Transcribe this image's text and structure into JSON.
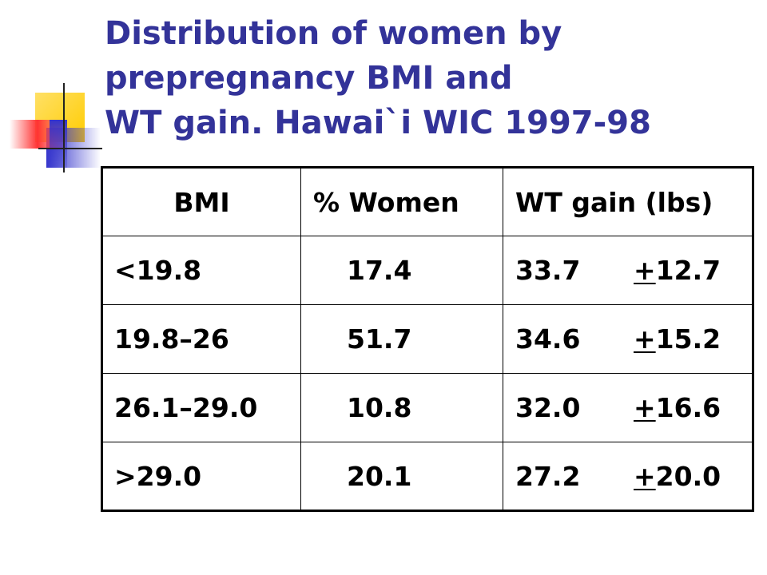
{
  "title": {
    "line1": "Distribution of women by",
    "line2": "prepregnancy BMI and",
    "line3": "WT gain. Hawai`i WIC 1997-98"
  },
  "colors": {
    "title": "#333399",
    "ornament_yellow": "#ffcc00",
    "ornament_blue": "#3333cc",
    "ornament_red": "#ff3333"
  },
  "table": {
    "headers": [
      "BMI",
      "% Women",
      "WT gain (lbs)"
    ],
    "rows": [
      {
        "bmi": "<19.8",
        "women": "17.4",
        "gain_mean": "33.7",
        "gain_sign": "+",
        "gain_sd": "12.7"
      },
      {
        "bmi": "19.8–26",
        "women": "51.7",
        "gain_mean": "34.6",
        "gain_sign": "+",
        "gain_sd": "15.2"
      },
      {
        "bmi": "26.1–29.0",
        "women": "10.8",
        "gain_mean": "32.0",
        "gain_sign": "+",
        "gain_sd": "16.6"
      },
      {
        "bmi": ">29.0",
        "women": "20.1",
        "gain_mean": "27.2",
        "gain_sign": "+",
        "gain_sd": "20.0"
      }
    ]
  }
}
